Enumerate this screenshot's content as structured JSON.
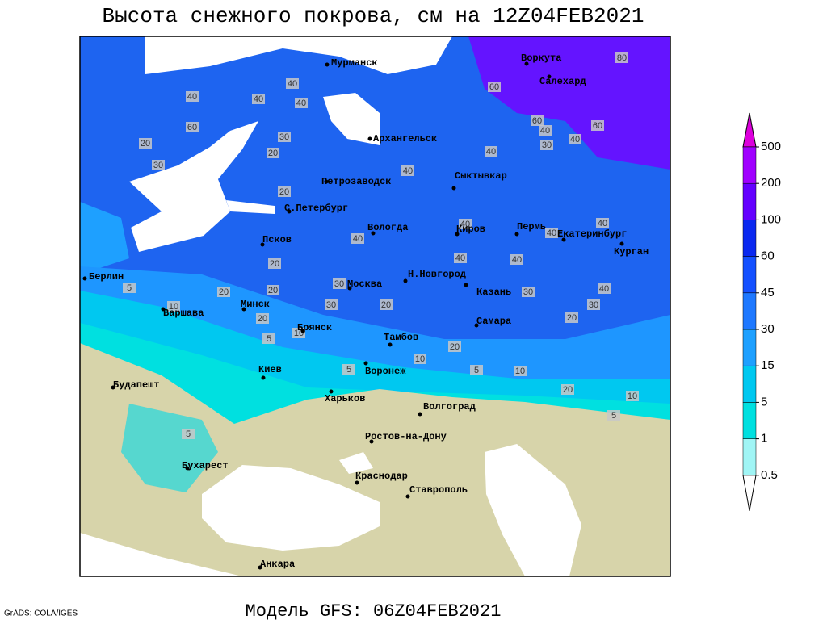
{
  "title": "Высота снежного покрова, см на 12Z04FEB2021",
  "footer": "Модель GFS: 06Z04FEB2021",
  "credit": "GrADS: COLA/IGES",
  "cities": [
    "Мурманск",
    "Воркута",
    "Салехард",
    "Архангельск",
    "Петрозаводск",
    "Сыктывкар",
    "С.Петербург",
    "Вологда",
    "Киров",
    "Пермь",
    "Екатеринбург",
    "Псков",
    "Курган",
    "Н.Новгород",
    "Берлин",
    "Москва",
    "Казань",
    "Минск",
    "Варшава",
    "Самара",
    "Брянск",
    "Тамбов",
    "Воронеж",
    "Киев",
    "Будапешт",
    "Харьков",
    "Волгоград",
    "Ростов-на-Дону",
    "Бухарест",
    "Краснодар",
    "Ставрополь",
    "Анкара"
  ],
  "contour_labels": [
    20,
    30,
    60,
    40,
    40,
    40,
    40,
    30,
    20,
    40,
    40,
    40,
    30,
    60,
    60,
    40,
    80,
    60,
    20,
    40,
    20,
    40,
    40,
    30,
    20,
    20,
    10,
    30,
    20,
    30,
    40,
    20,
    10,
    5,
    20,
    10,
    5,
    10,
    20,
    10,
    5,
    5,
    5,
    20,
    30,
    5,
    40,
    40,
    40
  ],
  "legend": {
    "levels": [
      0.5,
      1,
      5,
      15,
      30,
      45,
      60,
      100,
      200,
      500
    ],
    "colors": [
      "#ffffff",
      "#a0f5f5",
      "#00e0e0",
      "#00c8f0",
      "#1ea0ff",
      "#1e78ff",
      "#1450ff",
      "#0a28f0",
      "#6400ff",
      "#a000ff",
      "#dc00dc"
    ]
  }
}
